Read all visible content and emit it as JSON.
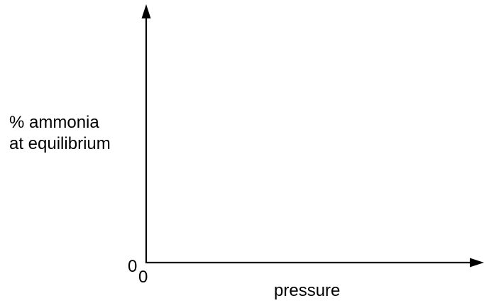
{
  "y_axis": {
    "label_line1": "% ammonia",
    "label_line2": "at equilibrium",
    "origin_label": "0"
  },
  "x_axis": {
    "label": "pressure",
    "origin_label": "0"
  },
  "colors": {
    "axis": "#000000",
    "background": "#ffffff"
  }
}
